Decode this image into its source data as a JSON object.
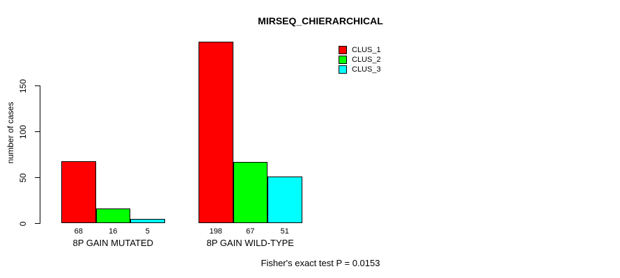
{
  "chart_data": {
    "type": "bar",
    "title": "MIRSEQ_CHIERARCHICAL",
    "ylabel": "number of cases",
    "xlabel": "",
    "categories": [
      "8P GAIN MUTATED",
      "8P GAIN WILD-TYPE"
    ],
    "series": [
      {
        "name": "CLUS_1",
        "color": "#ff0000",
        "values": [
          68,
          198
        ]
      },
      {
        "name": "CLUS_2",
        "color": "#00ff00",
        "values": [
          16,
          67
        ]
      },
      {
        "name": "CLUS_3",
        "color": "#00ffff",
        "values": [
          5,
          51
        ]
      }
    ],
    "bar_value_labels": [
      [
        "68",
        "16",
        "5"
      ],
      [
        "198",
        "67",
        "51"
      ]
    ],
    "y_ticks": [
      0,
      50,
      100,
      150
    ],
    "ylim": [
      0,
      205
    ],
    "axis_tick_range": [
      0,
      150
    ],
    "grid": false,
    "legend_position": "top-right",
    "legend_entries": [
      "CLUS_1",
      "CLUS_2",
      "CLUS_3"
    ],
    "bar_border_color": "#000000",
    "background_color": "#ffffff",
    "text_color": "#000000",
    "footnote": "Fisher's exact test P = 0.0153"
  }
}
